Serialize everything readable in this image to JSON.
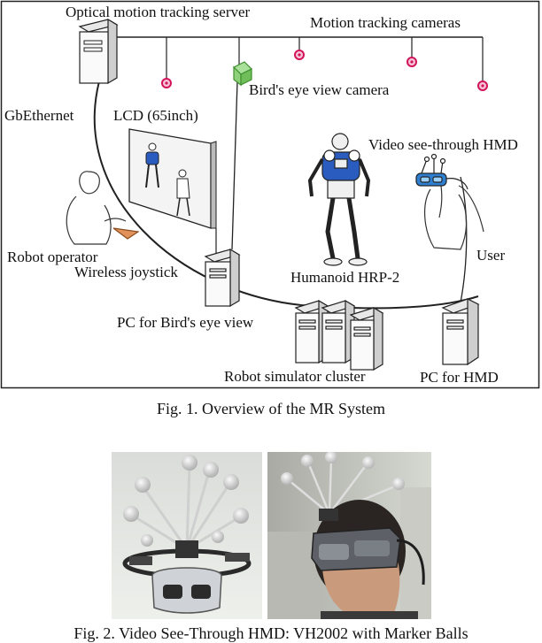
{
  "figure1": {
    "labels": {
      "optical_server": "Optical motion tracking server",
      "motion_cameras": "Motion tracking cameras",
      "birds_eye_camera": "Bird's eye view camera",
      "gbethernet": "GbEthernet",
      "lcd": "LCD (65inch)",
      "video_hmd": "Video see-through HMD",
      "robot_operator": "Robot operator",
      "wireless_joystick": "Wireless joystick",
      "humanoid": "Humanoid HRP-2",
      "user": "User",
      "pc_birds_eye": "PC for Bird's eye view",
      "robot_cluster": "Robot simulator cluster",
      "pc_hmd": "PC for HMD"
    },
    "caption": "Fig. 1.    Overview of the MR System"
  },
  "figure2": {
    "caption": "Fig. 2.    Video See-Through HMD: VH2002 with Marker Balls"
  },
  "colors": {
    "camera_marker": "#d4145a",
    "birds_eye_camera": "#8fd17a",
    "hmd_blue": "#2f7fd0",
    "robot_blue": "#2a5cc0"
  }
}
